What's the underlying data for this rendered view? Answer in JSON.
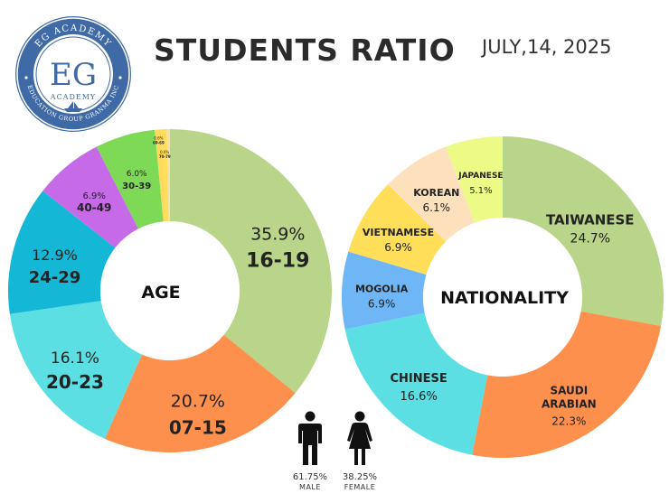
{
  "header": {
    "title": "STUDENTS RATIO",
    "date": "JULY,14, 2025"
  },
  "logo": {
    "initials": "EG",
    "top_text": "EG ACADEMY",
    "sub_text": "ACADEMY",
    "bottom_text": "EDUCATION GROUP GRANMA INC"
  },
  "gender": {
    "male": {
      "percent": "61.75%",
      "label": "MALE"
    },
    "female": {
      "percent": "38.25%",
      "label": "FEMALE"
    }
  },
  "chart_data": [
    {
      "type": "pie",
      "donut": true,
      "title": "AGE",
      "slices": [
        {
          "label": "16-19",
          "value": 35.9,
          "value_text": "35.9%",
          "color": "#b9d58a"
        },
        {
          "label": "07-15",
          "value": 20.7,
          "value_text": "20.7%",
          "color": "#fd904d"
        },
        {
          "label": "20-23",
          "value": 16.1,
          "value_text": "16.1%",
          "color": "#5cdfe3"
        },
        {
          "label": "24-29",
          "value": 12.9,
          "value_text": "12.9%",
          "color": "#14b8d6"
        },
        {
          "label": "40-49",
          "value": 6.9,
          "value_text": "6.9%",
          "color": "#c66ae8"
        },
        {
          "label": "30-39",
          "value": 6.0,
          "value_text": "6.0%",
          "color": "#7ed957"
        },
        {
          "label": "60-69",
          "value": 0.6,
          "value_text": "0.6%",
          "color": "#ffd95a"
        },
        {
          "label": "70-79",
          "value": 0.6,
          "value_text": "0.6%",
          "color": "#ffde59"
        },
        {
          "label": "",
          "value": 0.3,
          "value_text": "",
          "color": "#f7dfb4"
        }
      ]
    },
    {
      "type": "pie",
      "donut": true,
      "title": "NATIONALITY",
      "slices": [
        {
          "label": "TAIWANESE",
          "value": 24.7,
          "value_text": "24.7%",
          "color": "#b9d58a"
        },
        {
          "label": "SAUDI ARABIAN",
          "value": 22.3,
          "value_text": "22.3%",
          "color": "#fd904d"
        },
        {
          "label": "CHINESE",
          "value": 16.6,
          "value_text": "16.6%",
          "color": "#5cdfe3"
        },
        {
          "label": "MOGOLIA",
          "value": 6.9,
          "value_text": "6.9%",
          "color": "#6fb6f7"
        },
        {
          "label": "VIETNAMESE",
          "value": 6.9,
          "value_text": "6.9%",
          "color": "#ffde59"
        },
        {
          "label": "KOREAN",
          "value": 6.1,
          "value_text": "6.1%",
          "color": "#fde1bc"
        },
        {
          "label": "JAPANESE",
          "value": 5.1,
          "value_text": "5.1%",
          "color": "#ecfb86"
        }
      ]
    }
  ]
}
